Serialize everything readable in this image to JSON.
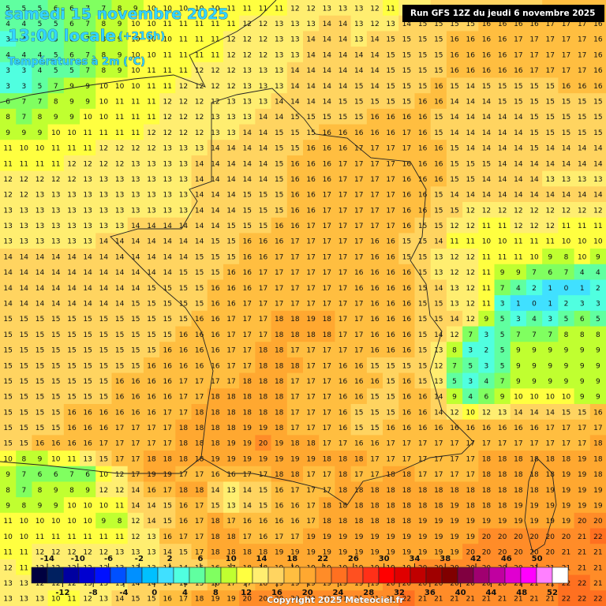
{
  "header": {
    "date": "samedi 15 novembre 2025",
    "time": "13:00 locale",
    "lead": "(+216h)",
    "field": "Températures à 2m (°C)"
  },
  "run": "Run GFS 12Z du jeudi 6 novembre 2025",
  "copyright": "Copyright 2025 Meteociel.fr",
  "grid": {
    "rows": [
      [
        5,
        5,
        5,
        6,
        6,
        7,
        7,
        8,
        9,
        10,
        10,
        10,
        10,
        10,
        11,
        11,
        11,
        11,
        12,
        12,
        13,
        13,
        13,
        12,
        11,
        12,
        13,
        14,
        14,
        14,
        15,
        15,
        15,
        15,
        16,
        16,
        16,
        17
      ],
      [
        4,
        4,
        5,
        5,
        6,
        7,
        8,
        9,
        10,
        10,
        11,
        11,
        11,
        11,
        11,
        12,
        12,
        13,
        13,
        13,
        14,
        14,
        13,
        12,
        13,
        14,
        15,
        15,
        15,
        15,
        16,
        16,
        16,
        16,
        17,
        17,
        17,
        16
      ],
      [
        3,
        4,
        4,
        5,
        6,
        7,
        8,
        9,
        10,
        10,
        10,
        11,
        11,
        11,
        12,
        12,
        12,
        13,
        13,
        14,
        14,
        14,
        13,
        14,
        15,
        15,
        15,
        15,
        16,
        16,
        16,
        16,
        17,
        17,
        17,
        17,
        17,
        16
      ],
      [
        4,
        4,
        4,
        5,
        6,
        7,
        8,
        9,
        10,
        10,
        11,
        11,
        11,
        11,
        12,
        12,
        12,
        13,
        13,
        14,
        14,
        14,
        14,
        14,
        15,
        15,
        15,
        15,
        16,
        16,
        16,
        16,
        17,
        17,
        17,
        17,
        17,
        16
      ],
      [
        3,
        3,
        4,
        5,
        5,
        7,
        8,
        9,
        10,
        11,
        11,
        11,
        12,
        12,
        12,
        13,
        13,
        13,
        14,
        14,
        14,
        14,
        14,
        14,
        15,
        15,
        15,
        15,
        16,
        16,
        16,
        16,
        16,
        17,
        17,
        17,
        17,
        16
      ],
      [
        3,
        3,
        5,
        7,
        9,
        9,
        10,
        10,
        10,
        11,
        11,
        12,
        12,
        12,
        12,
        13,
        13,
        13,
        14,
        14,
        14,
        14,
        15,
        14,
        15,
        15,
        15,
        16,
        15,
        14,
        15,
        15,
        15,
        15,
        15,
        16,
        16,
        16
      ],
      [
        6,
        7,
        7,
        8,
        9,
        9,
        10,
        11,
        11,
        11,
        12,
        12,
        12,
        12,
        13,
        13,
        13,
        14,
        14,
        14,
        14,
        15,
        15,
        15,
        15,
        15,
        16,
        16,
        14,
        14,
        14,
        15,
        15,
        15,
        15,
        15,
        15,
        15
      ],
      [
        8,
        7,
        8,
        9,
        9,
        10,
        10,
        11,
        11,
        11,
        12,
        12,
        12,
        13,
        13,
        13,
        14,
        14,
        15,
        15,
        15,
        15,
        15,
        16,
        16,
        16,
        16,
        15,
        14,
        14,
        14,
        14,
        14,
        15,
        15,
        15,
        15,
        15
      ],
      [
        9,
        9,
        9,
        10,
        10,
        11,
        11,
        11,
        11,
        12,
        12,
        12,
        12,
        13,
        13,
        14,
        14,
        15,
        15,
        15,
        16,
        16,
        16,
        16,
        16,
        17,
        16,
        15,
        14,
        14,
        14,
        14,
        14,
        15,
        15,
        15,
        15,
        15
      ],
      [
        11,
        10,
        10,
        11,
        11,
        11,
        12,
        12,
        12,
        12,
        13,
        13,
        13,
        14,
        14,
        14,
        14,
        15,
        15,
        16,
        16,
        16,
        17,
        17,
        17,
        17,
        16,
        16,
        15,
        14,
        14,
        14,
        14,
        15,
        14,
        14,
        14,
        14
      ],
      [
        11,
        11,
        11,
        11,
        12,
        12,
        12,
        12,
        13,
        13,
        13,
        13,
        14,
        14,
        14,
        14,
        14,
        15,
        16,
        16,
        16,
        17,
        17,
        17,
        17,
        16,
        16,
        16,
        15,
        15,
        15,
        14,
        14,
        14,
        14,
        14,
        14,
        14
      ],
      [
        12,
        12,
        12,
        12,
        12,
        13,
        13,
        13,
        13,
        13,
        13,
        13,
        14,
        14,
        14,
        14,
        14,
        15,
        16,
        16,
        16,
        17,
        17,
        17,
        17,
        16,
        16,
        16,
        15,
        15,
        14,
        14,
        14,
        14,
        13,
        13,
        13,
        13
      ],
      [
        12,
        12,
        13,
        13,
        13,
        13,
        13,
        13,
        13,
        13,
        13,
        13,
        14,
        14,
        14,
        15,
        15,
        15,
        16,
        16,
        17,
        17,
        17,
        17,
        17,
        16,
        16,
        15,
        14,
        14,
        14,
        14,
        14,
        14,
        14,
        14,
        14,
        14
      ],
      [
        13,
        13,
        13,
        13,
        13,
        13,
        13,
        13,
        13,
        13,
        13,
        13,
        14,
        14,
        14,
        15,
        15,
        15,
        16,
        16,
        17,
        17,
        17,
        17,
        17,
        16,
        16,
        15,
        15,
        12,
        12,
        12,
        12,
        12,
        12,
        12,
        12,
        12
      ],
      [
        13,
        13,
        13,
        13,
        13,
        13,
        13,
        13,
        14,
        14,
        14,
        14,
        14,
        14,
        15,
        15,
        15,
        16,
        16,
        17,
        17,
        17,
        17,
        17,
        17,
        16,
        15,
        15,
        12,
        12,
        11,
        11,
        12,
        12,
        12,
        11,
        11,
        11
      ],
      [
        13,
        13,
        13,
        13,
        13,
        13,
        14,
        14,
        14,
        14,
        14,
        14,
        14,
        15,
        15,
        16,
        16,
        16,
        17,
        17,
        17,
        17,
        17,
        16,
        16,
        15,
        15,
        14,
        11,
        11,
        10,
        10,
        11,
        11,
        11,
        10,
        10,
        10
      ],
      [
        14,
        14,
        14,
        14,
        14,
        14,
        14,
        14,
        14,
        14,
        14,
        14,
        15,
        15,
        15,
        16,
        16,
        17,
        17,
        17,
        17,
        17,
        17,
        16,
        16,
        15,
        15,
        13,
        12,
        12,
        11,
        11,
        11,
        10,
        9,
        8,
        10,
        9
      ],
      [
        14,
        14,
        14,
        14,
        14,
        14,
        14,
        14,
        14,
        14,
        14,
        15,
        15,
        15,
        16,
        16,
        17,
        17,
        17,
        17,
        17,
        17,
        16,
        16,
        16,
        16,
        15,
        13,
        12,
        12,
        11,
        9,
        9,
        7,
        6,
        7,
        4,
        4
      ],
      [
        14,
        14,
        14,
        14,
        14,
        14,
        14,
        14,
        14,
        15,
        15,
        15,
        15,
        16,
        16,
        16,
        17,
        17,
        17,
        17,
        17,
        17,
        16,
        16,
        16,
        16,
        15,
        14,
        13,
        12,
        11,
        7,
        4,
        2,
        1,
        0,
        1,
        2
      ],
      [
        14,
        14,
        14,
        14,
        14,
        14,
        14,
        14,
        15,
        15,
        15,
        15,
        15,
        16,
        16,
        17,
        17,
        17,
        17,
        17,
        17,
        17,
        17,
        16,
        16,
        16,
        15,
        15,
        13,
        12,
        11,
        3,
        1,
        0,
        1,
        2,
        3,
        3
      ],
      [
        15,
        15,
        15,
        15,
        15,
        15,
        15,
        15,
        15,
        15,
        15,
        15,
        16,
        16,
        17,
        17,
        17,
        18,
        18,
        19,
        18,
        17,
        17,
        16,
        16,
        16,
        15,
        15,
        14,
        12,
        9,
        5,
        3,
        4,
        3,
        5,
        6,
        5
      ],
      [
        15,
        15,
        15,
        15,
        15,
        15,
        15,
        15,
        15,
        15,
        15,
        16,
        16,
        16,
        17,
        17,
        17,
        18,
        18,
        18,
        18,
        17,
        17,
        16,
        16,
        16,
        15,
        14,
        12,
        7,
        3,
        5,
        7,
        7,
        7,
        8,
        8,
        8
      ],
      [
        15,
        15,
        15,
        15,
        15,
        15,
        15,
        15,
        15,
        15,
        16,
        16,
        16,
        16,
        17,
        17,
        18,
        18,
        17,
        17,
        17,
        17,
        17,
        16,
        16,
        16,
        15,
        13,
        8,
        3,
        2,
        5,
        9,
        9,
        9,
        9,
        9,
        9
      ],
      [
        15,
        15,
        15,
        15,
        15,
        15,
        15,
        15,
        15,
        16,
        16,
        16,
        16,
        16,
        17,
        17,
        18,
        18,
        18,
        17,
        17,
        16,
        16,
        15,
        15,
        15,
        15,
        12,
        7,
        5,
        3,
        5,
        9,
        9,
        9,
        9,
        9,
        9
      ],
      [
        15,
        15,
        15,
        15,
        15,
        15,
        15,
        16,
        16,
        16,
        16,
        17,
        17,
        17,
        17,
        18,
        18,
        18,
        17,
        17,
        17,
        16,
        16,
        16,
        15,
        16,
        15,
        13,
        5,
        3,
        4,
        7,
        9,
        9,
        9,
        9,
        9,
        9
      ],
      [
        15,
        15,
        15,
        15,
        15,
        15,
        15,
        16,
        16,
        16,
        16,
        17,
        17,
        18,
        18,
        18,
        18,
        18,
        17,
        17,
        17,
        16,
        16,
        15,
        15,
        16,
        16,
        14,
        9,
        4,
        6,
        9,
        10,
        10,
        10,
        10,
        9,
        9
      ],
      [
        15,
        15,
        15,
        15,
        16,
        16,
        16,
        16,
        16,
        16,
        17,
        17,
        18,
        18,
        18,
        18,
        18,
        18,
        17,
        17,
        17,
        16,
        15,
        15,
        15,
        16,
        16,
        14,
        12,
        10,
        12,
        13,
        14,
        14,
        14,
        15,
        15,
        16
      ],
      [
        15,
        15,
        15,
        15,
        16,
        16,
        16,
        17,
        17,
        17,
        17,
        18,
        18,
        18,
        18,
        19,
        19,
        18,
        17,
        17,
        17,
        16,
        15,
        15,
        16,
        16,
        16,
        16,
        16,
        16,
        16,
        16,
        16,
        16,
        17,
        17,
        17,
        17
      ],
      [
        15,
        15,
        16,
        16,
        16,
        16,
        17,
        17,
        17,
        17,
        17,
        18,
        18,
        18,
        19,
        19,
        20,
        19,
        18,
        18,
        17,
        17,
        16,
        16,
        17,
        17,
        17,
        17,
        17,
        17,
        17,
        17,
        17,
        17,
        17,
        17,
        17,
        18
      ],
      [
        10,
        8,
        9,
        10,
        11,
        13,
        15,
        17,
        17,
        18,
        18,
        18,
        18,
        19,
        19,
        19,
        19,
        19,
        19,
        19,
        18,
        18,
        18,
        17,
        17,
        17,
        17,
        17,
        17,
        17,
        18,
        18,
        18,
        18,
        18,
        18,
        19,
        18
      ],
      [
        9,
        7,
        6,
        6,
        7,
        6,
        10,
        12,
        17,
        19,
        19,
        17,
        17,
        16,
        16,
        17,
        17,
        18,
        18,
        17,
        17,
        18,
        17,
        17,
        18,
        18,
        17,
        17,
        17,
        17,
        18,
        18,
        18,
        18,
        18,
        19,
        19,
        18
      ],
      [
        8,
        7,
        8,
        9,
        8,
        9,
        12,
        12,
        14,
        16,
        17,
        18,
        18,
        14,
        13,
        14,
        15,
        16,
        17,
        17,
        17,
        18,
        18,
        18,
        18,
        18,
        18,
        18,
        18,
        18,
        18,
        18,
        18,
        18,
        19,
        19,
        19,
        19
      ],
      [
        9,
        8,
        9,
        9,
        10,
        10,
        10,
        11,
        14,
        14,
        15,
        16,
        17,
        15,
        13,
        14,
        15,
        16,
        16,
        17,
        18,
        18,
        18,
        18,
        18,
        18,
        18,
        18,
        19,
        18,
        18,
        18,
        19,
        19,
        19,
        19,
        19,
        19
      ],
      [
        11,
        10,
        10,
        10,
        10,
        10,
        9,
        8,
        12,
        14,
        15,
        16,
        17,
        18,
        17,
        16,
        16,
        16,
        16,
        17,
        18,
        18,
        18,
        18,
        18,
        18,
        19,
        19,
        19,
        19,
        19,
        19,
        19,
        19,
        19,
        19,
        20,
        20
      ],
      [
        10,
        10,
        11,
        11,
        11,
        11,
        11,
        11,
        12,
        13,
        16,
        17,
        17,
        18,
        18,
        17,
        16,
        17,
        17,
        19,
        19,
        19,
        19,
        19,
        19,
        19,
        19,
        19,
        19,
        19,
        20,
        20,
        20,
        20,
        20,
        20,
        21,
        22
      ],
      [
        11,
        11,
        12,
        12,
        12,
        12,
        12,
        13,
        13,
        13,
        14,
        15,
        17,
        18,
        18,
        18,
        18,
        19,
        19,
        19,
        19,
        19,
        19,
        19,
        19,
        19,
        19,
        19,
        19,
        20,
        20,
        20,
        20,
        20,
        20,
        21,
        21,
        21
      ],
      [
        12,
        11,
        12,
        12,
        12,
        12,
        12,
        13,
        13,
        13,
        14,
        14,
        15,
        16,
        17,
        18,
        18,
        19,
        19,
        19,
        19,
        19,
        19,
        19,
        19,
        19,
        20,
        20,
        20,
        20,
        20,
        20,
        20,
        21,
        21,
        21,
        21,
        21
      ],
      [
        13,
        13,
        12,
        12,
        12,
        13,
        13,
        13,
        14,
        14,
        14,
        14,
        15,
        16,
        17,
        17,
        18,
        19,
        19,
        19,
        19,
        19,
        19,
        19,
        20,
        20,
        20,
        20,
        20,
        20,
        20,
        20,
        21,
        21,
        21,
        22,
        22,
        21
      ],
      [
        13,
        13,
        13,
        10,
        11,
        12,
        13,
        14,
        15,
        15,
        16,
        17,
        18,
        19,
        19,
        20,
        20,
        20,
        20,
        20,
        20,
        21,
        21,
        21,
        21,
        22,
        21,
        21,
        21,
        21,
        21,
        21,
        21,
        21,
        21,
        22,
        22,
        22
      ]
    ]
  },
  "legend": {
    "colors": [
      "#000040",
      "#002060",
      "#0000a0",
      "#0000d0",
      "#0010ff",
      "#0050ff",
      "#0090ff",
      "#00c0ff",
      "#40e0ff",
      "#50ffe0",
      "#60ffa0",
      "#80ff60",
      "#c0ff30",
      "#ffff40",
      "#ffee70",
      "#ffd460",
      "#ffbe40",
      "#ffa830",
      "#ff8c28",
      "#ff7020",
      "#ff5020",
      "#ff3018",
      "#ff0000",
      "#e00000",
      "#c00000",
      "#a00000",
      "#800000",
      "#800040",
      "#a00070",
      "#c000a0",
      "#e000d0",
      "#ff00ff",
      "#ff80ff",
      "#ffffff"
    ],
    "top_labels": [
      -14,
      -10,
      -6,
      -2,
      2,
      6,
      10,
      14,
      18,
      22,
      26,
      30,
      34,
      38,
      42,
      46,
      50
    ],
    "bottom_labels": [
      -12,
      -8,
      -4,
      0,
      4,
      8,
      12,
      16,
      20,
      24,
      28,
      32,
      36,
      40,
      44,
      48,
      52
    ]
  }
}
